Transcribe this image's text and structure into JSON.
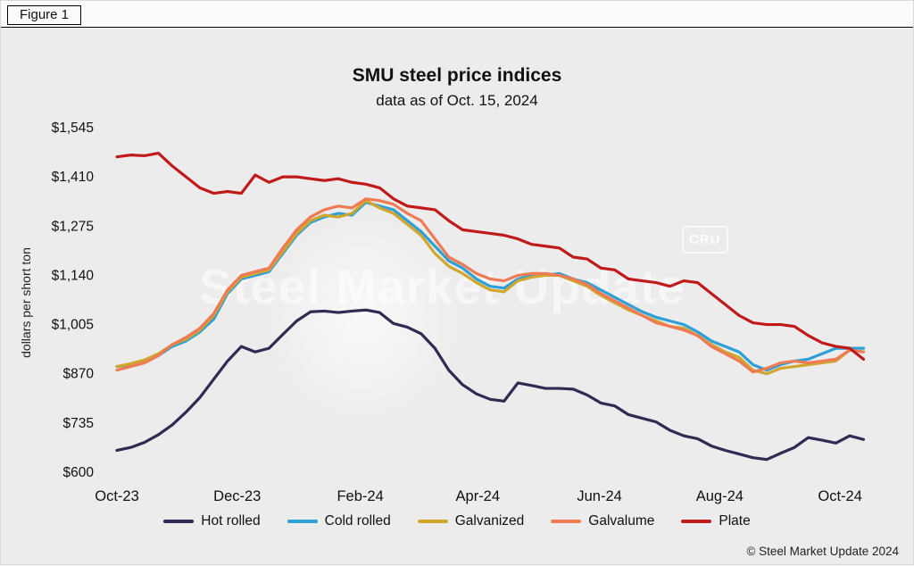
{
  "figure_label": "Figure 1",
  "title": "SMU steel price indices",
  "subtitle": "data as of Oct. 15, 2024",
  "ylabel": "dollars per short ton",
  "watermark": "Steel Market Update",
  "cru_logo": "CRU",
  "copyright": "© Steel Market Update 2024",
  "chart_data": {
    "type": "line",
    "title": "SMU steel price indices",
    "subtitle": "data as of Oct. 15, 2024",
    "ylabel": "dollars per short ton",
    "x_unit": "weeks from Oct-2023 (weekly observations)",
    "ylim": [
      600,
      1545
    ],
    "grid": false,
    "legend_position": "bottom",
    "y_ticks": [
      {
        "value": 600,
        "label": "$600"
      },
      {
        "value": 735,
        "label": "$735"
      },
      {
        "value": 870,
        "label": "$870"
      },
      {
        "value": 1005,
        "label": "$1,005"
      },
      {
        "value": 1140,
        "label": "$1,140"
      },
      {
        "value": 1275,
        "label": "$1,275"
      },
      {
        "value": 1410,
        "label": "$1,410"
      },
      {
        "value": 1545,
        "label": "$1,545"
      }
    ],
    "x_ticks": [
      {
        "label": "Oct-23",
        "pos": 0
      },
      {
        "label": "Dec-23",
        "pos": 8.7
      },
      {
        "label": "Feb-24",
        "pos": 17.6
      },
      {
        "label": "Apr-24",
        "pos": 26.1
      },
      {
        "label": "Jun-24",
        "pos": 34.9
      },
      {
        "label": "Aug-24",
        "pos": 43.6
      },
      {
        "label": "Oct-24",
        "pos": 52.3
      }
    ],
    "series": [
      {
        "name": "Hot rolled",
        "color": "#2f2b52",
        "values": [
          660,
          668,
          682,
          703,
          730,
          765,
          805,
          855,
          905,
          945,
          930,
          940,
          978,
          1015,
          1040,
          1042,
          1038,
          1042,
          1045,
          1038,
          1008,
          998,
          980,
          940,
          880,
          840,
          815,
          800,
          795,
          845,
          838,
          830,
          830,
          828,
          812,
          790,
          782,
          758,
          748,
          738,
          715,
          700,
          692,
          672,
          660,
          650,
          640,
          635,
          652,
          668,
          695,
          688,
          680,
          700,
          690
        ]
      },
      {
        "name": "Cold rolled",
        "color": "#2da0d8",
        "values": [
          890,
          895,
          905,
          920,
          945,
          960,
          985,
          1020,
          1090,
          1130,
          1140,
          1150,
          1200,
          1250,
          1285,
          1300,
          1310,
          1305,
          1340,
          1330,
          1320,
          1290,
          1260,
          1220,
          1180,
          1160,
          1130,
          1110,
          1105,
          1130,
          1140,
          1140,
          1145,
          1130,
          1120,
          1100,
          1080,
          1060,
          1040,
          1025,
          1015,
          1005,
          985,
          960,
          945,
          930,
          895,
          880,
          895,
          905,
          910,
          925,
          940,
          940,
          940
        ]
      },
      {
        "name": "Galvanized",
        "color": "#d1a62e",
        "values": [
          890,
          898,
          908,
          925,
          950,
          965,
          990,
          1030,
          1095,
          1135,
          1145,
          1155,
          1205,
          1255,
          1290,
          1305,
          1300,
          1310,
          1345,
          1325,
          1310,
          1280,
          1250,
          1200,
          1165,
          1145,
          1120,
          1100,
          1095,
          1125,
          1135,
          1140,
          1140,
          1125,
          1110,
          1085,
          1065,
          1045,
          1030,
          1015,
          1000,
          995,
          975,
          950,
          930,
          915,
          880,
          870,
          885,
          890,
          895,
          900,
          905,
          935,
          930
        ]
      },
      {
        "name": "Galvalume",
        "color": "#ef7b54",
        "values": [
          880,
          890,
          900,
          920,
          950,
          970,
          995,
          1035,
          1100,
          1140,
          1150,
          1160,
          1215,
          1265,
          1300,
          1320,
          1330,
          1325,
          1350,
          1345,
          1335,
          1310,
          1290,
          1240,
          1190,
          1170,
          1145,
          1130,
          1125,
          1140,
          1145,
          1145,
          1140,
          1130,
          1115,
          1090,
          1070,
          1050,
          1030,
          1010,
          1000,
          990,
          975,
          945,
          925,
          905,
          875,
          885,
          900,
          905,
          900,
          905,
          910,
          935,
          930
        ]
      },
      {
        "name": "Plate",
        "color": "#c01a1b",
        "values": [
          1465,
          1470,
          1468,
          1475,
          1440,
          1410,
          1380,
          1365,
          1370,
          1365,
          1415,
          1395,
          1410,
          1410,
          1405,
          1400,
          1405,
          1395,
          1390,
          1380,
          1350,
          1330,
          1325,
          1320,
          1290,
          1265,
          1260,
          1255,
          1250,
          1240,
          1225,
          1220,
          1215,
          1190,
          1185,
          1160,
          1155,
          1130,
          1125,
          1120,
          1110,
          1125,
          1120,
          1090,
          1060,
          1030,
          1010,
          1005,
          1005,
          1000,
          975,
          955,
          945,
          940,
          910
        ]
      }
    ]
  }
}
